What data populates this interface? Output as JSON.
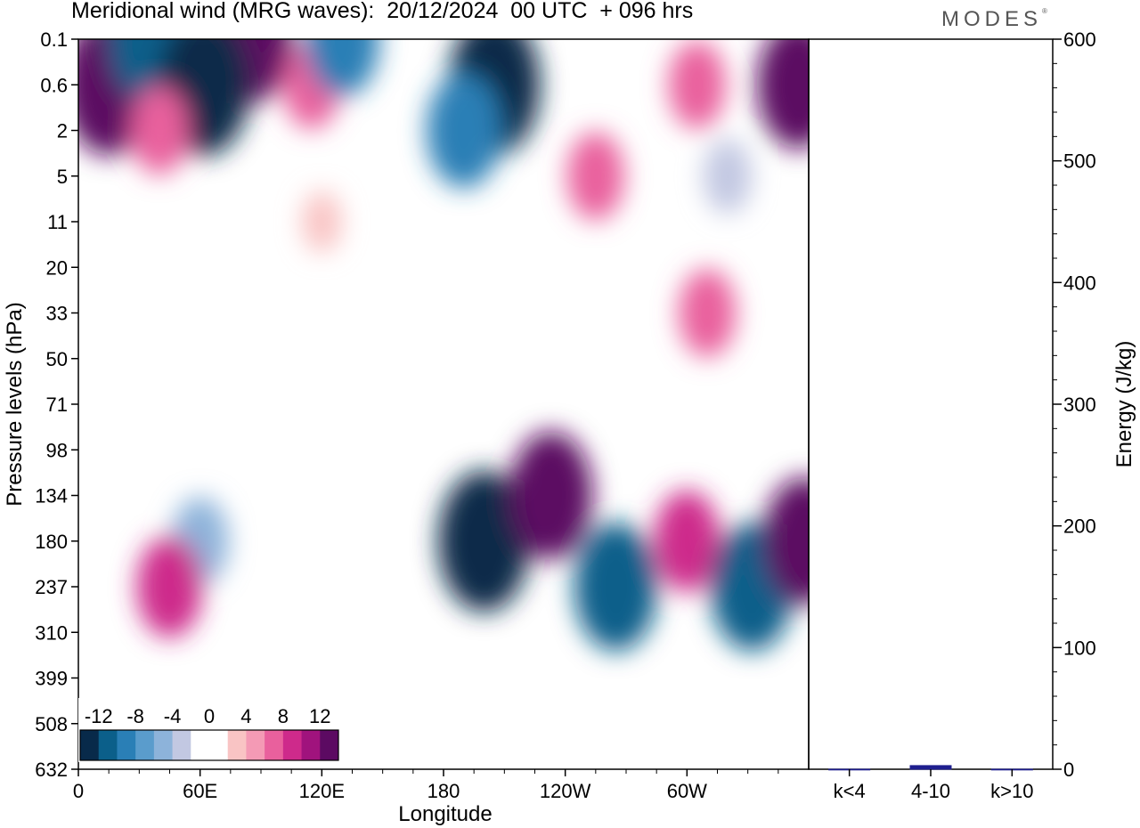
{
  "title": "Meridional wind (MRG waves):  20/12/2024  00 UTC  + 096 hrs",
  "logo": "MODES",
  "chart_data": [
    {
      "type": "heatmap",
      "title": "Meridional wind (MRG waves):  20/12/2024  00 UTC  + 096 hrs",
      "xlabel": "Longitude",
      "ylabel": "Pressure levels (hPa)",
      "x_ticks": [
        {
          "lon": 0,
          "label": "0"
        },
        {
          "lon": 60,
          "label": "60E"
        },
        {
          "lon": 120,
          "label": "120E"
        },
        {
          "lon": 180,
          "label": "180"
        },
        {
          "lon": 240,
          "label": "120W"
        },
        {
          "lon": 300,
          "label": "60W"
        }
      ],
      "xlim": [
        0,
        360
      ],
      "y_levels": [
        "0.1",
        "0.6",
        "2",
        "5",
        "11",
        "20",
        "33",
        "50",
        "71",
        "98",
        "134",
        "180",
        "237",
        "310",
        "399",
        "508",
        "632"
      ],
      "colorbar": {
        "levels": [
          -14,
          -12,
          -10,
          -8,
          -6,
          -4,
          -2,
          0,
          2,
          4,
          6,
          8,
          10,
          12,
          14
        ],
        "labels": [
          "-12",
          "-8",
          "-4",
          "0",
          "4",
          "8",
          "12"
        ],
        "colors": [
          "#082a4a",
          "#0b5f8a",
          "#2a7fb6",
          "#5a9ccc",
          "#8db3da",
          "#c2c8e2",
          "#ffffff",
          "#ffffff",
          "#f9c4c4",
          "#f49ab5",
          "#e9609d",
          "#ce2a8b",
          "#a0137d",
          "#5c0a62"
        ]
      },
      "cells": [
        {
          "lon": 15,
          "p": "0.6",
          "v": 14
        },
        {
          "lon": 85,
          "p": "0.1",
          "v": 12
        },
        {
          "lon": 115,
          "p": "0.6",
          "v": 6
        },
        {
          "lon": 305,
          "p": "0.6",
          "v": 6
        },
        {
          "lon": 35,
          "p": "0.1",
          "v": -12
        },
        {
          "lon": 62,
          "p": "0.6",
          "v": -14
        },
        {
          "lon": 130,
          "p": "0.1",
          "v": -10
        },
        {
          "lon": 205,
          "p": "0.6",
          "v": -14
        },
        {
          "lon": 355,
          "p": "0.6",
          "v": 12
        },
        {
          "lon": 190,
          "p": "2",
          "v": -10
        },
        {
          "lon": 40,
          "p": "2",
          "v": 6
        },
        {
          "lon": 255,
          "p": "5",
          "v": 6
        },
        {
          "lon": 320,
          "p": "5",
          "v": -4
        },
        {
          "lon": 120,
          "p": "11",
          "v": 2
        },
        {
          "lon": 60,
          "p": "20",
          "v": -2
        },
        {
          "lon": 310,
          "p": "33",
          "v": 6
        },
        {
          "lon": 200,
          "p": "180",
          "v": -14
        },
        {
          "lon": 233,
          "p": "134",
          "v": 12
        },
        {
          "lon": 265,
          "p": "237",
          "v": -12
        },
        {
          "lon": 300,
          "p": "180",
          "v": 8
        },
        {
          "lon": 332,
          "p": "237",
          "v": -12
        },
        {
          "lon": 358,
          "p": "180",
          "v": 12
        },
        {
          "lon": 60,
          "p": "180",
          "v": -6
        },
        {
          "lon": 45,
          "p": "237",
          "v": 8
        }
      ]
    },
    {
      "type": "bar",
      "ylabel": "Energy (J/kg)",
      "categories": [
        "k<4",
        "4-10",
        "k>10"
      ],
      "values": [
        0,
        3,
        0
      ],
      "ylim": [
        0,
        600
      ],
      "y_ticks": [
        0,
        100,
        200,
        300,
        400,
        500,
        600
      ],
      "bar_color": "#1f1f8f"
    }
  ]
}
